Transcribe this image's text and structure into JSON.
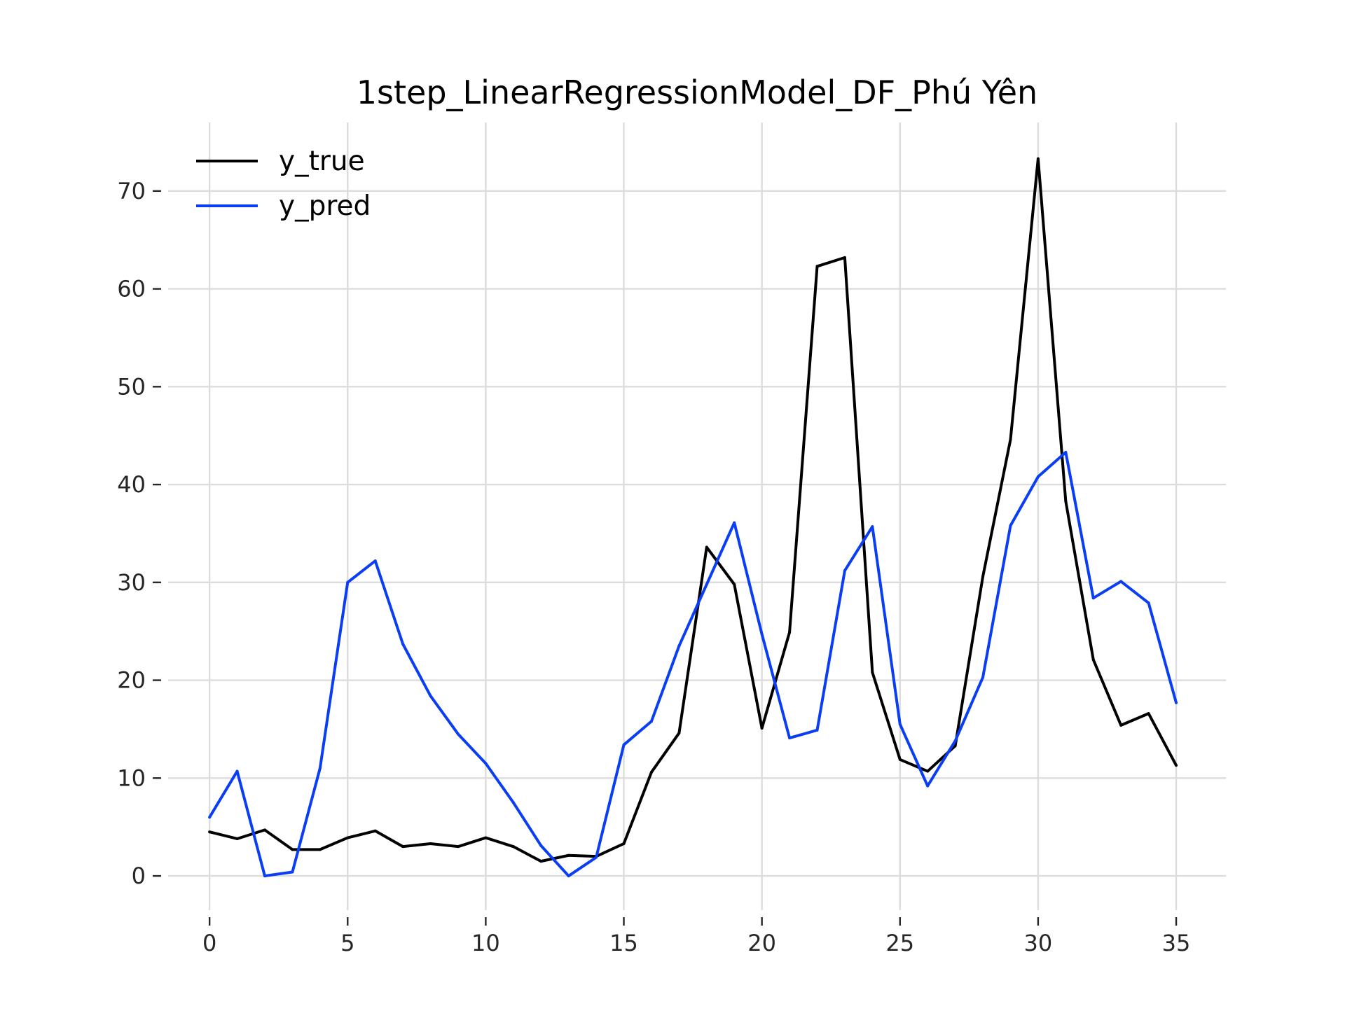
{
  "chart_data": {
    "type": "line",
    "title": "1step_LinearRegressionModel_DF_Phú Yên",
    "xlabel": "",
    "ylabel": "",
    "xlim": [
      -1.5,
      36.8
    ],
    "ylim": [
      -3.5,
      77
    ],
    "xticks": [
      0,
      5,
      10,
      15,
      20,
      25,
      30,
      35
    ],
    "yticks": [
      0,
      10,
      20,
      30,
      40,
      50,
      60,
      70
    ],
    "grid": true,
    "legend_position": "top-left",
    "x": [
      0,
      1,
      2,
      3,
      4,
      5,
      6,
      7,
      8,
      9,
      10,
      11,
      12,
      13,
      14,
      15,
      16,
      17,
      18,
      19,
      20,
      21,
      22,
      23,
      24,
      25,
      26,
      27,
      28,
      29,
      30,
      31,
      32,
      33,
      34,
      35
    ],
    "series": [
      {
        "name": "y_true",
        "color": "#000000",
        "values": [
          4.5,
          3.8,
          4.7,
          2.7,
          2.7,
          3.9,
          4.6,
          3.0,
          3.3,
          3.0,
          3.9,
          3.0,
          1.5,
          2.1,
          2.0,
          3.3,
          10.6,
          14.6,
          33.6,
          29.8,
          15.1,
          24.9,
          62.3,
          63.2,
          20.8,
          11.9,
          10.7,
          13.3,
          30.6,
          44.6,
          73.3,
          38.3,
          22.1,
          15.4,
          16.6,
          11.3
        ]
      },
      {
        "name": "y_pred",
        "color": "#0a3ef5",
        "values": [
          6.0,
          10.7,
          0.0,
          0.4,
          11.0,
          30.0,
          32.2,
          23.7,
          18.4,
          14.5,
          11.5,
          7.5,
          3.1,
          0.0,
          1.9,
          13.4,
          15.8,
          23.5,
          29.8,
          36.1,
          24.7,
          14.1,
          14.9,
          31.2,
          35.7,
          15.5,
          9.2,
          13.8,
          20.3,
          35.8,
          40.8,
          43.3,
          28.4,
          30.1,
          27.9,
          17.7
        ]
      }
    ]
  }
}
